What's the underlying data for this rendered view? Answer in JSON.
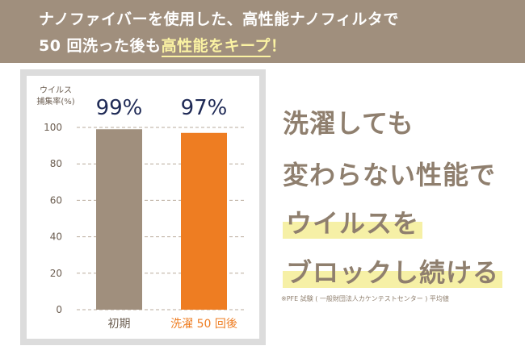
{
  "banner": {
    "line1": "ナノファイバーを使用した、高性能ナノフィルタで",
    "line2_prefix": "50 回洗った後も",
    "line2_highlight": "高性能をキープ",
    "line2_suffix": "！"
  },
  "chart_data": {
    "type": "bar",
    "ylabel_line1": "ウイルス",
    "ylabel_line2": "捕集率(%)",
    "ylim": [
      0,
      100
    ],
    "yticks": [
      0,
      20,
      40,
      60,
      80,
      100
    ],
    "grid": true,
    "categories": [
      "初期",
      "洗濯 50 回後"
    ],
    "values": [
      99,
      97
    ],
    "value_labels": [
      "99%",
      "97%"
    ],
    "bar_colors": [
      "#a08f7d",
      "#ee7d22"
    ],
    "category_label_colors": [
      "#6b5d50",
      "#ee7d22"
    ]
  },
  "message": {
    "line1": "洗濯しても",
    "line2": "変わらない性能で",
    "line3": "ウイルスを",
    "line4": "ブロックし続ける"
  },
  "footnote": "※PFE 試験 ( 一般財団法人カケンテストセンター ) 平均値",
  "colors": {
    "banner_bg": "#a08f7d",
    "text_brown": "#8f7f6e",
    "highlight_yellow": "#f6f0a6",
    "value_label_navy": "#1f2a56"
  }
}
